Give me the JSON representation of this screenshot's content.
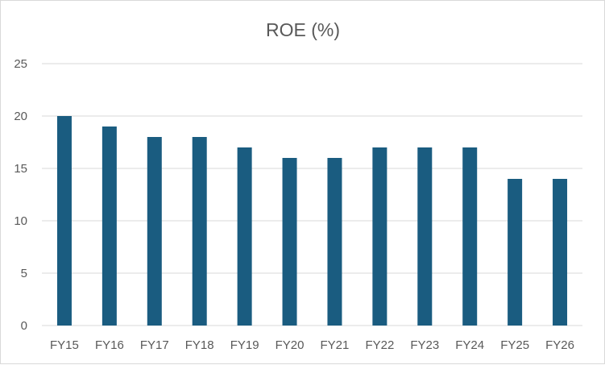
{
  "chart_data": {
    "type": "bar",
    "title": "ROE (%)",
    "xlabel": "",
    "ylabel": "",
    "categories": [
      "FY15",
      "FY16",
      "FY17",
      "FY18",
      "FY19",
      "FY20",
      "FY21",
      "FY22",
      "FY23",
      "FY24",
      "FY25",
      "FY26"
    ],
    "values": [
      20,
      19,
      18,
      18,
      17,
      16,
      16,
      17,
      17,
      17,
      14,
      14
    ],
    "ylim": [
      0,
      25
    ],
    "yticks": [
      0,
      5,
      10,
      15,
      20,
      25
    ],
    "grid": true,
    "legend": "none",
    "colors": {
      "bar": "#1a5c80",
      "grid": "#d9d9d9",
      "text": "#595959"
    }
  }
}
